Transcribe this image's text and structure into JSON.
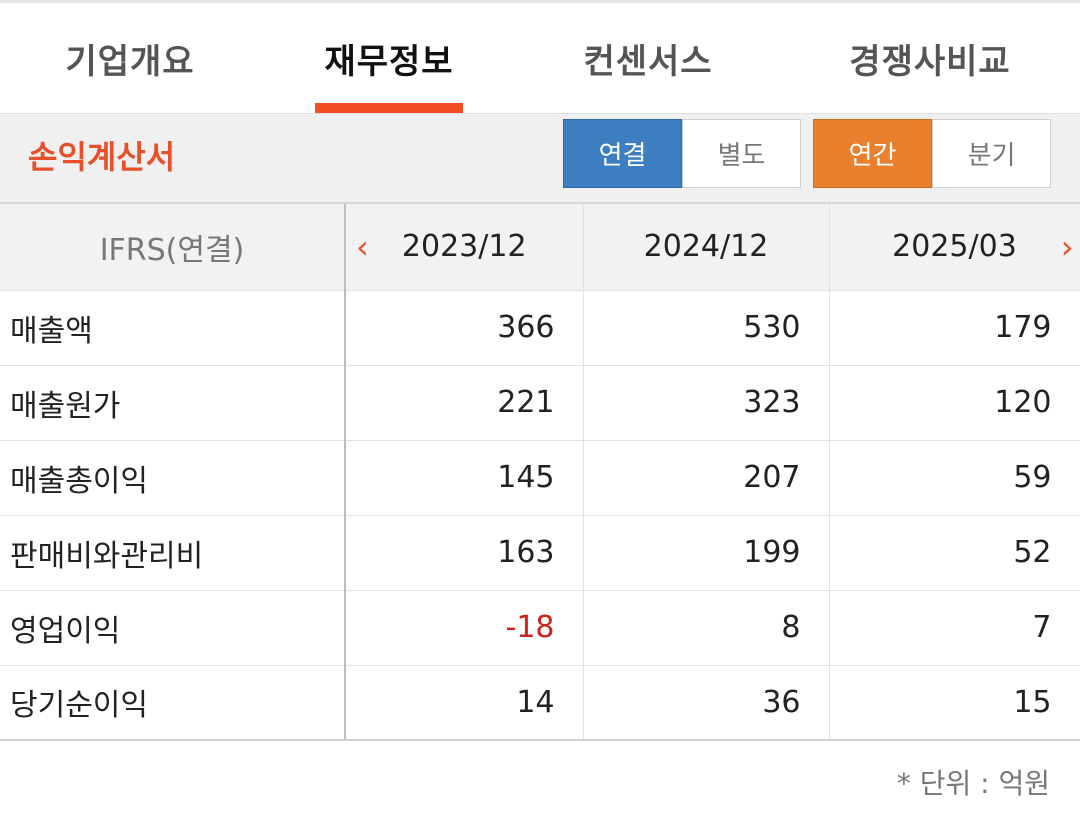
{
  "tabs": [
    {
      "label": "기업개요",
      "active": false
    },
    {
      "label": "재무정보",
      "active": true
    },
    {
      "label": "컨센서스",
      "active": false
    },
    {
      "label": "경쟁사비교",
      "active": false
    }
  ],
  "section_title": "손익계산서",
  "toggle_scope": {
    "consolidated": "연결",
    "separate": "별도",
    "selected": "연결"
  },
  "toggle_period": {
    "annual": "연간",
    "quarter": "분기",
    "selected": "연간"
  },
  "table": {
    "corner_label": "IFRS(연결)",
    "columns": [
      "2023/12",
      "2024/12",
      "2025/03"
    ],
    "rows": [
      {
        "label": "매출액",
        "values": [
          "366",
          "530",
          "179"
        ]
      },
      {
        "label": "매출원가",
        "values": [
          "221",
          "323",
          "120"
        ]
      },
      {
        "label": "매출총이익",
        "values": [
          "145",
          "207",
          "59"
        ]
      },
      {
        "label": "판매비와관리비",
        "values": [
          "163",
          "199",
          "52"
        ]
      },
      {
        "label": "영업이익",
        "values": [
          "-18",
          "8",
          "7"
        ]
      },
      {
        "label": "당기순이익",
        "values": [
          "14",
          "36",
          "15"
        ]
      }
    ]
  },
  "unit_note": "* 단위 : 억원",
  "colors": {
    "accent": "#f04e23",
    "blue": "#3d7ec0",
    "orange": "#e9802d",
    "negative": "#c8241c"
  }
}
